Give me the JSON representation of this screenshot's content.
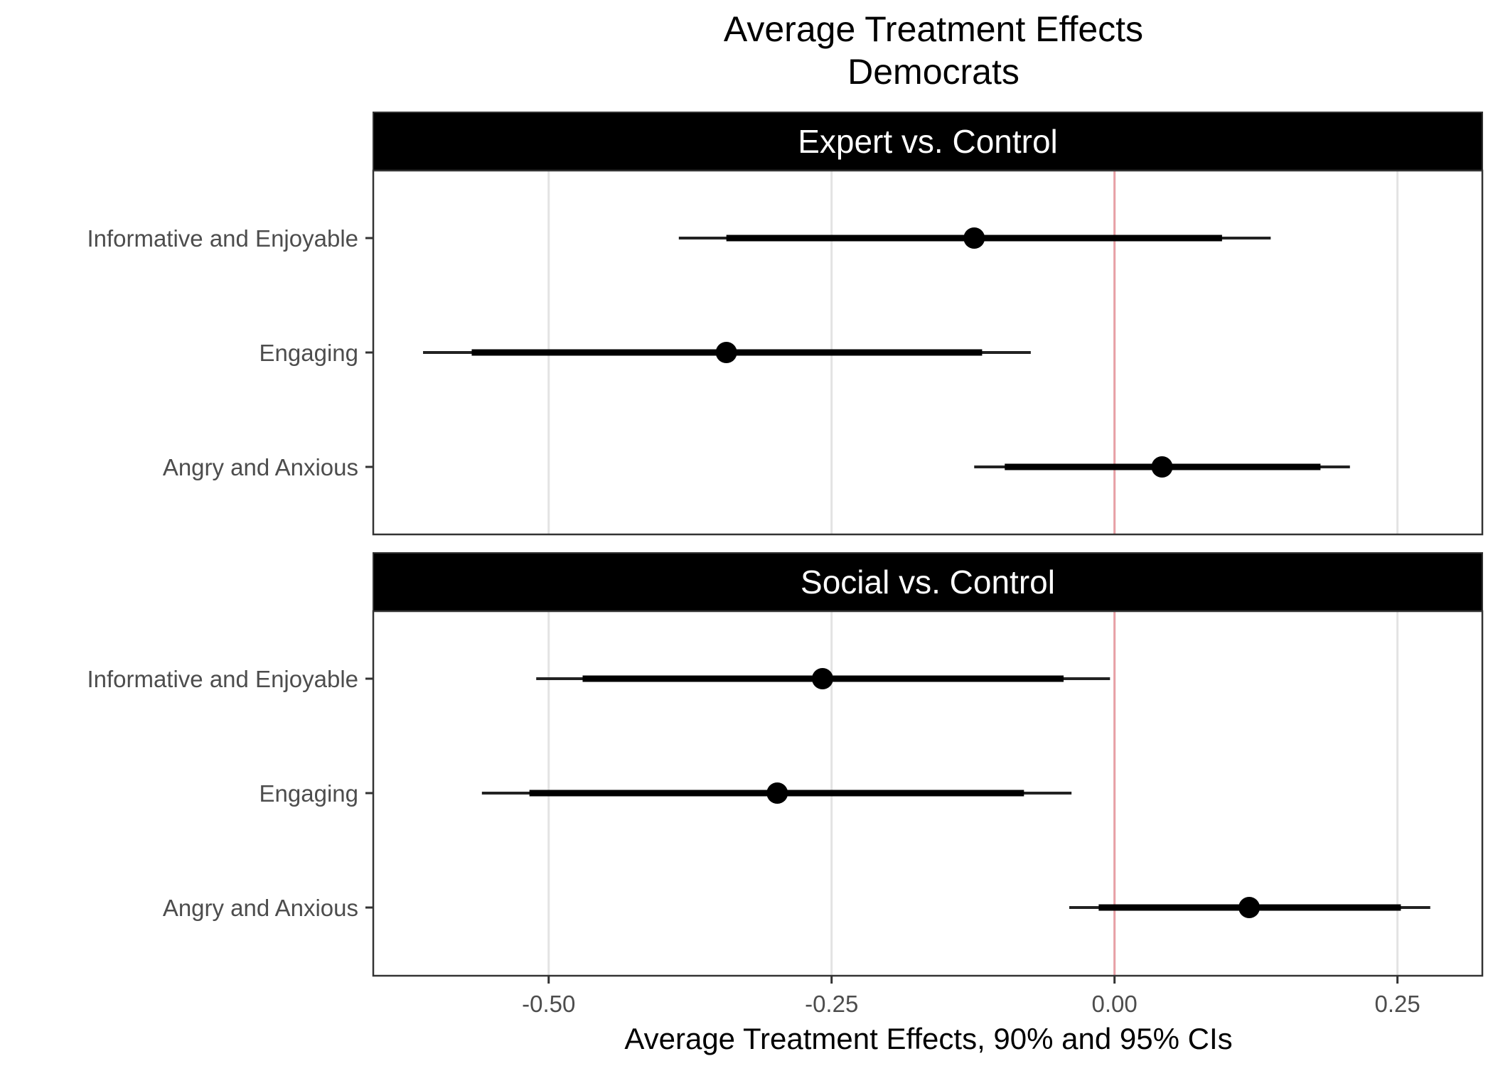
{
  "chart_data": {
    "type": "scatter",
    "title": "Average Treatment Effects",
    "subtitle": "Democrats",
    "xlabel": "Average Treatment Effects, 90% and 95% CIs",
    "ylabel": "",
    "xlim": [
      -0.655,
      0.325
    ],
    "xticks": [
      -0.5,
      -0.25,
      0.0,
      0.25
    ],
    "xtick_labels": [
      "-0.50",
      "-0.25",
      "0.00",
      "0.25"
    ],
    "reference_line": 0,
    "reference_color": "#e8a0a6",
    "grid": "vertical major",
    "legend": "none",
    "categories": [
      "Informative and Enjoyable",
      "Engaging",
      "Angry and Anxious"
    ],
    "panels": [
      {
        "label": "Expert vs. Control",
        "points": [
          {
            "category": "Informative and Enjoyable",
            "estimate": -0.124,
            "ci90": [
              -0.343,
              0.095
            ],
            "ci95": [
              -0.385,
              0.138
            ]
          },
          {
            "category": "Engaging",
            "estimate": -0.343,
            "ci90": [
              -0.568,
              -0.117
            ],
            "ci95": [
              -0.611,
              -0.074
            ]
          },
          {
            "category": "Angry and Anxious",
            "estimate": 0.042,
            "ci90": [
              -0.097,
              0.182
            ],
            "ci95": [
              -0.124,
              0.208
            ]
          }
        ]
      },
      {
        "label": "Social vs. Control",
        "points": [
          {
            "category": "Informative and Enjoyable",
            "estimate": -0.258,
            "ci90": [
              -0.47,
              -0.045
            ],
            "ci95": [
              -0.511,
              -0.004
            ]
          },
          {
            "category": "Engaging",
            "estimate": -0.298,
            "ci90": [
              -0.517,
              -0.08
            ],
            "ci95": [
              -0.559,
              -0.038
            ]
          },
          {
            "category": "Angry and Anxious",
            "estimate": 0.119,
            "ci90": [
              -0.014,
              0.253
            ],
            "ci95": [
              -0.04,
              0.279
            ]
          }
        ]
      }
    ]
  }
}
